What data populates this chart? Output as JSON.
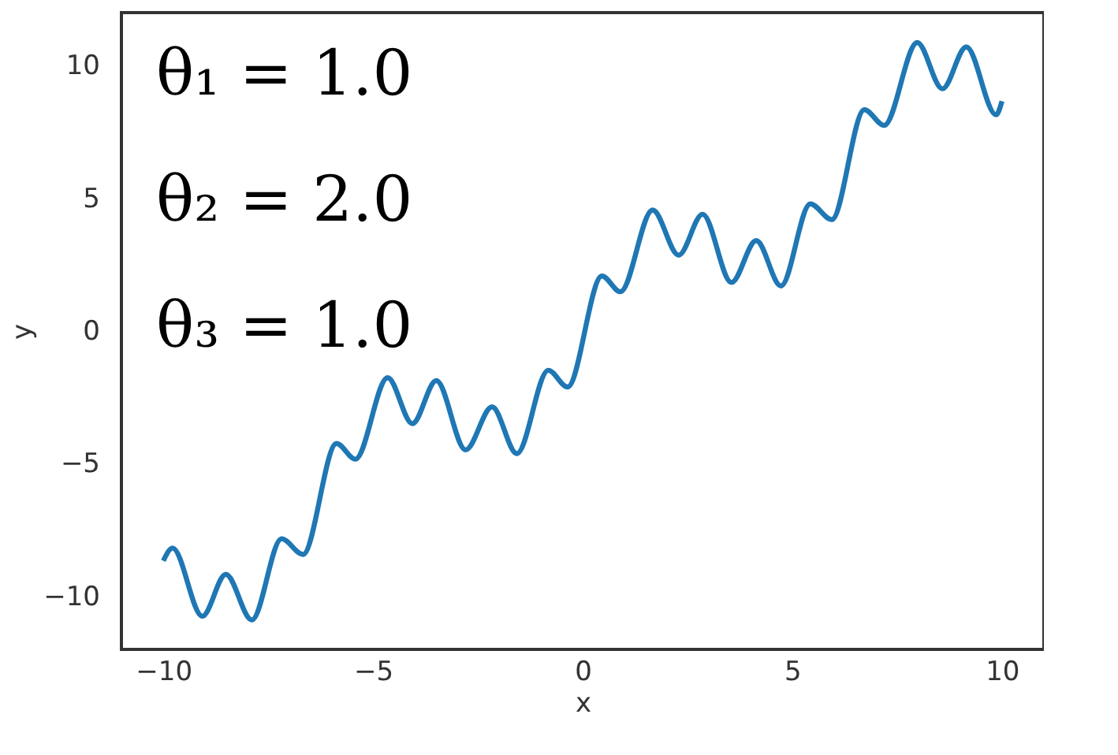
{
  "chart_data": {
    "type": "line",
    "xlabel": "x",
    "ylabel": "y",
    "x": [
      -10,
      -9.78,
      -9.07,
      -8.51,
      -7.89,
      -7.18,
      -6.67,
      -5.87,
      -5.42,
      -4.65,
      -4.06,
      -3.49,
      -2.79,
      -2.16,
      -1.57,
      -0.82,
      -0.36,
      0.46,
      0.9,
      1.67,
      2.29,
      2.86,
      3.55,
      4.14,
      4.73,
      5.43,
      5.94,
      6.72,
      7.19,
      7.98,
      8.58,
      9.15,
      9.86,
      10
    ],
    "series": [
      {
        "color": "#1f77b4",
        "values": [
          -8.66,
          -8.18,
          -10.75,
          -9.17,
          -10.89,
          -7.83,
          -8.42,
          -4.24,
          -4.83,
          -1.76,
          -3.49,
          -1.87,
          -4.48,
          -2.86,
          -4.62,
          -1.48,
          -2.11,
          2.07,
          1.48,
          4.56,
          2.86,
          4.4,
          1.83,
          3.41,
          1.7,
          4.79,
          4.2,
          8.34,
          7.75,
          10.87,
          9.13,
          10.71,
          8.15,
          8.66
        ]
      }
    ],
    "xlim": [
      -11,
      11
    ],
    "ylim": [
      -12,
      12
    ],
    "xticks": [
      {
        "value": -10,
        "label": "−10"
      },
      {
        "value": -5,
        "label": "−5"
      },
      0,
      5,
      10
    ],
    "yticks": [
      {
        "value": -10,
        "label": "−10"
      },
      {
        "value": -5,
        "label": "−5"
      },
      0,
      5,
      10
    ],
    "annotations": [
      "θ₁ = 1.0",
      "θ₂ = 2.0",
      "θ₃ = 1.0"
    ],
    "line_style": "solid",
    "marker": "none"
  }
}
